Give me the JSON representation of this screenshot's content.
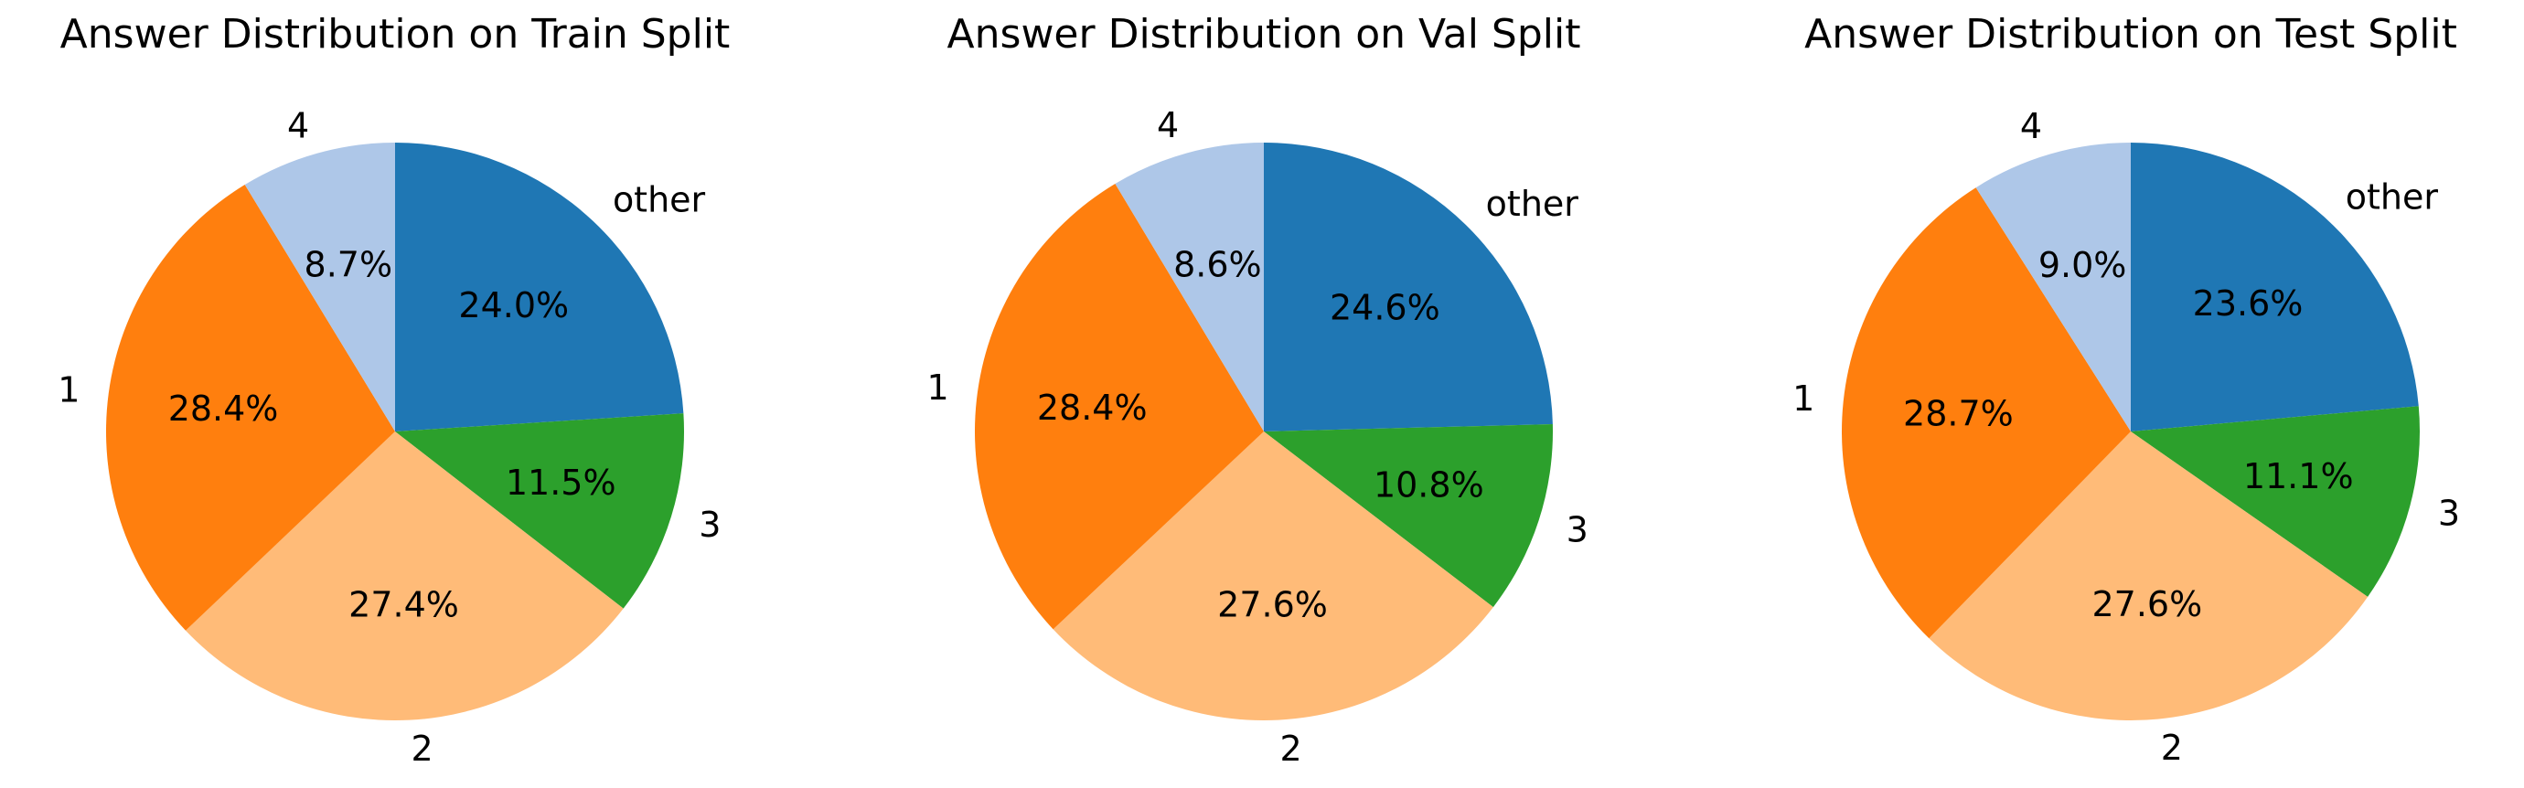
{
  "chart_data": [
    {
      "type": "pie",
      "title": "Answer Distribution on Train Split",
      "labels": [
        "other",
        "3",
        "2",
        "1",
        "4"
      ],
      "values": [
        24.0,
        11.5,
        27.4,
        28.4,
        8.7
      ],
      "value_labels": [
        "24.0%",
        "11.5%",
        "27.4%",
        "28.4%",
        "8.7%"
      ],
      "colors": [
        "#1f77b4",
        "#2ca02c",
        "#ffbb78",
        "#ff7f0e",
        "#aec7e8"
      ],
      "start_angle_deg": 90,
      "direction": "clockwise",
      "legend": "none"
    },
    {
      "type": "pie",
      "title": "Answer Distribution on Val Split",
      "labels": [
        "other",
        "3",
        "2",
        "1",
        "4"
      ],
      "values": [
        24.6,
        10.8,
        27.6,
        28.4,
        8.6
      ],
      "value_labels": [
        "24.6%",
        "10.8%",
        "27.6%",
        "28.4%",
        "8.6%"
      ],
      "colors": [
        "#1f77b4",
        "#2ca02c",
        "#ffbb78",
        "#ff7f0e",
        "#aec7e8"
      ],
      "start_angle_deg": 90,
      "direction": "clockwise",
      "legend": "none"
    },
    {
      "type": "pie",
      "title": "Answer Distribution on Test Split",
      "labels": [
        "other",
        "3",
        "2",
        "1",
        "4"
      ],
      "values": [
        23.6,
        11.1,
        27.6,
        28.7,
        9.0
      ],
      "value_labels": [
        "23.6%",
        "11.1%",
        "27.6%",
        "28.7%",
        "9.0%"
      ],
      "colors": [
        "#1f77b4",
        "#2ca02c",
        "#ffbb78",
        "#ff7f0e",
        "#aec7e8"
      ],
      "start_angle_deg": 90,
      "direction": "clockwise",
      "legend": "none"
    }
  ]
}
